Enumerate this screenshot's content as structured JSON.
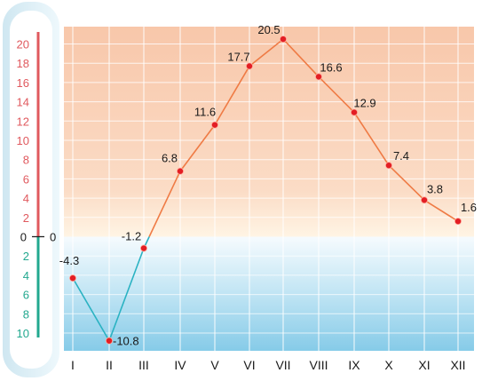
{
  "chart_data": {
    "type": "line",
    "categories": [
      "I",
      "II",
      "III",
      "IV",
      "V",
      "VI",
      "VII",
      "VIII",
      "IX",
      "X",
      "XI",
      "XII"
    ],
    "values": [
      -4.3,
      -10.8,
      -1.2,
      6.8,
      11.6,
      17.7,
      20.5,
      16.6,
      12.9,
      7.4,
      3.8,
      1.6
    ],
    "data_labels": [
      "-4.3",
      "-10.8",
      "-1.2",
      "6.8",
      "11.6",
      "17.7",
      "20.5",
      "16.6",
      "12.9",
      "7.4",
      "3.8",
      "1.6"
    ],
    "y_ticks_positive": [
      "20",
      "18",
      "16",
      "14",
      "12",
      "10",
      "8",
      "6",
      "4",
      "2"
    ],
    "y_ticks_negative": [
      "2",
      "4",
      "6",
      "8",
      "10"
    ],
    "zero_label": "0",
    "ylim": [
      -12,
      22
    ],
    "grid": true,
    "colors": {
      "warm_background": "#f9cdb2",
      "cold_background": "#8ecfe9",
      "warm_line": "#ef7b45",
      "cold_line": "#2ab2c2",
      "point": "#e31e24",
      "positive_scale": "#e0595e",
      "negative_scale": "#22a88f"
    }
  }
}
